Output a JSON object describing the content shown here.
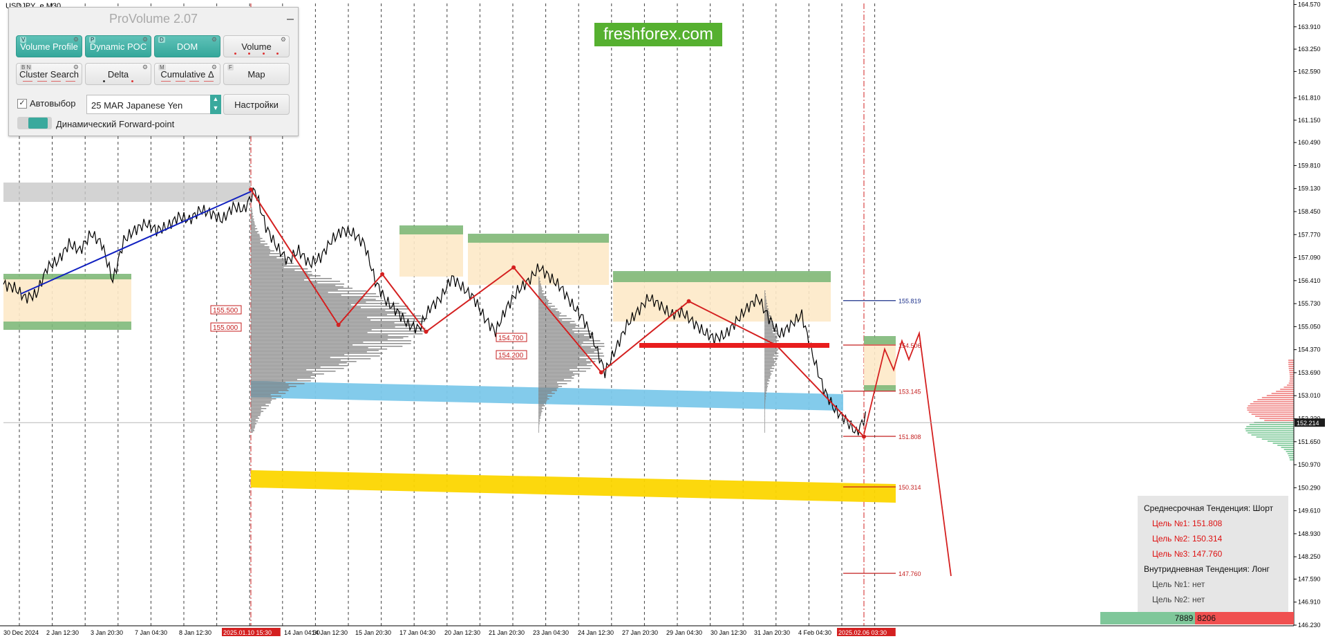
{
  "chart_title": "USDJPY_e,M30",
  "panel": {
    "title": "ProVolume 2.07",
    "buttons": [
      {
        "label": "Volume Profile",
        "hotkey": "V",
        "active": true
      },
      {
        "label": "Dynamic POC",
        "hotkey": "P",
        "active": true
      },
      {
        "label": "DOM",
        "hotkey": "D",
        "active": true
      },
      {
        "label": "Volume",
        "hotkey": "",
        "active": false
      },
      {
        "label": "Cluster Search",
        "hotkey": "B  N",
        "active": false
      },
      {
        "label": "Delta",
        "hotkey": "",
        "active": false
      },
      {
        "label": "Cumulative Δ",
        "hotkey": "M",
        "active": false
      },
      {
        "label": "Map",
        "hotkey": "F",
        "active": false
      }
    ],
    "autoselect_label": "Автовыбор",
    "instrument": "25 MAR Japanese Yen",
    "settings_label": "Настройки",
    "forward_point_label": "Динамический Forward-point"
  },
  "brand": "freshforex.com",
  "info": {
    "mid_trend": "Среднесрочная Тенденция: Шорт",
    "mid_targets": [
      "Цель №1: 151.808",
      "Цель №2: 150.314",
      "Цель №3: 147.760"
    ],
    "intraday_trend": "Внутридневная Тенденция: Лонг",
    "intraday_targets": [
      "Цель №1: нет",
      "Цель №2: нет"
    ]
  },
  "volume_counts": {
    "buy": "7889",
    "sell": "8206"
  },
  "colors": {
    "up": "#2e9d5a",
    "down": "#e0302f",
    "accent": "#3aa99d",
    "brand": "#56b030"
  },
  "chart_data": {
    "type": "line",
    "symbol": "USDJPY_e",
    "timeframe": "M30",
    "ylim": [
      146.21,
      164.6
    ],
    "y_ticks": [
      "164.570",
      "163.910",
      "163.250",
      "162.590",
      "161.810",
      "161.150",
      "160.490",
      "159.810",
      "159.130",
      "158.450",
      "157.770",
      "157.090",
      "156.410",
      "155.730",
      "155.050",
      "154.370",
      "153.690",
      "153.010",
      "152.330",
      "151.650",
      "150.970",
      "150.290",
      "149.610",
      "148.930",
      "148.250",
      "147.590",
      "146.910",
      "146.230"
    ],
    "x_ticks": [
      "30 Dec 2024",
      "2 Jan 12:30",
      "3 Jan 20:30",
      "7 Jan 04:30",
      "8 Jan 12:30",
      "2025.01.10 15:30",
      "14 Jan 04:30",
      "14 Jan 12:30",
      "15 Jan 20:30",
      "17 Jan 04:30",
      "20 Jan 12:30",
      "21 Jan 20:30",
      "23 Jan 04:30",
      "24 Jan 12:30",
      "27 Jan 20:30",
      "29 Jan 04:30",
      "30 Jan 12:30",
      "31 Jan 20:30",
      "4 Feb 04:30",
      "2025.02.06 03:30"
    ],
    "highlighted_x": [
      "2025.01.10 15:30",
      "2025.02.06 03:30"
    ],
    "current_price": "152.214",
    "series": [
      {
        "values": [
          156.3,
          156.2,
          155.9,
          156.0,
          156.8,
          157.0,
          157.5,
          157.3,
          157.8,
          157.5,
          156.4,
          157.6,
          157.9,
          158.1,
          157.9,
          158.0,
          158.3,
          158.2,
          158.5,
          158.4,
          158.2,
          158.6,
          158.5,
          159.1,
          158.0,
          157.4,
          157.0,
          157.3,
          156.9,
          157.1,
          157.6,
          157.9,
          157.8,
          157.5,
          156.4,
          155.8,
          155.5,
          155.1,
          155.0,
          155.6,
          155.9,
          156.5,
          156.2,
          155.9,
          155.3,
          154.9,
          155.6,
          156.1,
          156.4,
          156.8,
          156.5,
          156.2,
          155.7,
          155.3,
          154.6,
          153.7,
          154.4,
          155.1,
          155.5,
          155.9,
          155.7,
          155.4,
          155.5,
          155.2,
          154.9,
          154.7,
          154.8,
          155.2,
          155.6,
          155.9,
          155.3,
          154.8,
          155.1,
          155.4,
          154.2,
          153.2,
          152.6,
          152.3,
          151.9,
          152.5
        ]
      }
    ],
    "x_start_index": 0,
    "zigzag_points": [
      [
        0.0,
        159.1
      ],
      [
        1.0,
        155.1
      ],
      [
        1.5,
        156.6
      ],
      [
        2.0,
        154.9
      ],
      [
        3.0,
        156.8
      ],
      [
        4.0,
        153.7
      ],
      [
        5.0,
        155.8
      ],
      [
        6.0,
        154.5
      ],
      [
        7.0,
        151.8
      ]
    ],
    "levels": [
      {
        "value": 155.819,
        "label": "155.819"
      },
      {
        "value": 154.506,
        "label": "154.506"
      },
      {
        "value": 153.145,
        "label": "153.145"
      },
      {
        "value": 151.808,
        "label": "151.808"
      },
      {
        "value": 150.314,
        "label": "150.314"
      },
      {
        "value": 147.76,
        "label": "147.760"
      }
    ],
    "price_tags": [
      "155.500",
      "155.000",
      "154.700",
      "154.200"
    ]
  }
}
